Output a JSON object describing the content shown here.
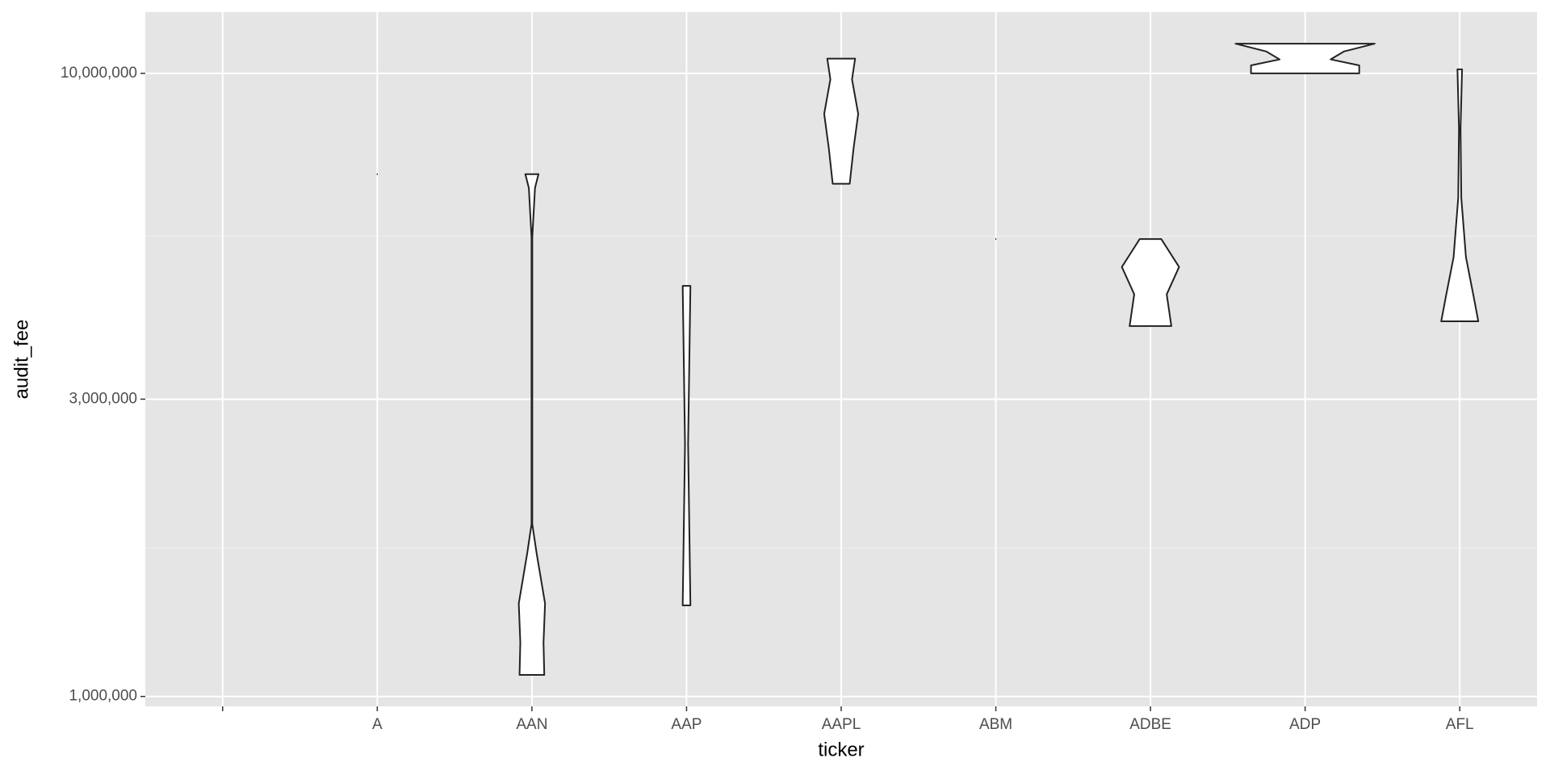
{
  "chart_data": {
    "type": "violin",
    "x_label": "ticker",
    "y_label": "audit_fee",
    "categories": [
      null,
      "A",
      "AAN",
      "AAP",
      "AAPL",
      "ABM",
      "ADBE",
      "ADP",
      "AFL"
    ],
    "violins": [
      null,
      {
        "y": [
          6890000
        ],
        "width": [
          0.006
        ]
      },
      {
        "y": [
          6890000,
          6550000,
          5460000,
          1890000,
          1700000,
          1410000,
          1220000,
          1083000
        ],
        "width": [
          0.085,
          0.04,
          0.005,
          0.005,
          0.06,
          0.17,
          0.15,
          0.16
        ]
      },
      {
        "y": [
          4560000,
          2540000,
          1400000
        ],
        "width": [
          0.05,
          0.02,
          0.05
        ]
      },
      {
        "y": [
          10560000,
          9780000,
          8610000,
          7580000,
          6650000
        ],
        "width": [
          0.18,
          0.14,
          0.22,
          0.16,
          0.11
        ]
      },
      {
        "y": [
          5420000
        ],
        "width": [
          0.006
        ]
      },
      {
        "y": [
          5420000,
          4890000,
          4420000,
          3930000
        ],
        "width": [
          0.14,
          0.37,
          0.21,
          0.27
        ]
      },
      {
        "y": [
          11160000,
          10840000,
          10530000,
          10300000,
          10000000
        ],
        "width": [
          0.9,
          0.5,
          0.33,
          0.7,
          0.7
        ]
      },
      {
        "y": [
          10150000,
          8150000,
          6310000,
          5070000,
          4380000,
          4000000
        ],
        "width": [
          0.03,
          0.01,
          0.02,
          0.08,
          0.18,
          0.24
        ]
      }
    ],
    "fill": "#ffffff",
    "outline": "#222222",
    "log_y": true,
    "ylim": [
      964000,
      12540000
    ],
    "yticks": [
      {
        "value": 1000000,
        "label": "1,000,000"
      },
      {
        "value": 3000000,
        "label": "3,000,000"
      },
      {
        "value": 10000000,
        "label": "10,000,000"
      }
    ],
    "minor_yticks": [
      1732051,
      5477226
    ],
    "grid": true
  }
}
